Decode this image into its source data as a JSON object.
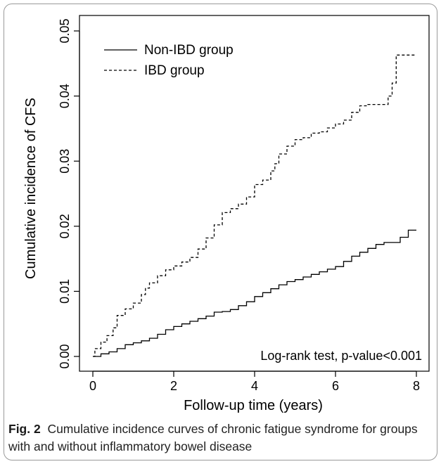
{
  "caption": {
    "label": "Fig. 2",
    "text": "Cumulative incidence curves of chronic fatigue syndrome for groups with and without inflammatory bowel disease"
  },
  "chart_data": {
    "type": "line",
    "step": true,
    "xlabel": "Follow-up time (years)",
    "ylabel": "Cumulative incidence of CFS",
    "xlim": [
      0,
      8
    ],
    "ylim": [
      0,
      0.05
    ],
    "xticks": [
      "0",
      "2",
      "4",
      "6",
      "8"
    ],
    "yticks": [
      "0.00",
      "0.01",
      "0.02",
      "0.03",
      "0.04",
      "0.05"
    ],
    "grid": false,
    "legend_position": "top-left",
    "annotation": "Log-rank test, p-value<0.001",
    "series": [
      {
        "name": "Non-IBD group",
        "style": "solid",
        "color": "#000000",
        "x": [
          0,
          0.2,
          0.4,
          0.6,
          0.8,
          1.0,
          1.2,
          1.4,
          1.6,
          1.8,
          2.0,
          2.2,
          2.4,
          2.6,
          2.8,
          3.0,
          3.2,
          3.4,
          3.6,
          3.8,
          4.0,
          4.2,
          4.4,
          4.6,
          4.8,
          5.0,
          5.2,
          5.4,
          5.6,
          5.8,
          6.0,
          6.2,
          6.4,
          6.6,
          6.8,
          7.0,
          7.2,
          7.4,
          7.6,
          7.8,
          8.0
        ],
        "y": [
          0.0,
          0.0004,
          0.0007,
          0.0012,
          0.0018,
          0.0021,
          0.0024,
          0.0028,
          0.0034,
          0.0041,
          0.0046,
          0.005,
          0.0054,
          0.0058,
          0.0062,
          0.0068,
          0.0069,
          0.0072,
          0.0078,
          0.0084,
          0.0092,
          0.0098,
          0.0104,
          0.011,
          0.0115,
          0.0118,
          0.0122,
          0.0126,
          0.013,
          0.0134,
          0.0138,
          0.0146,
          0.0154,
          0.016,
          0.0166,
          0.0172,
          0.0175,
          0.0175,
          0.0183,
          0.0194,
          0.0194
        ]
      },
      {
        "name": "IBD group",
        "style": "dashed",
        "color": "#000000",
        "x": [
          0,
          0.05,
          0.2,
          0.35,
          0.5,
          0.6,
          0.8,
          1.0,
          1.2,
          1.3,
          1.4,
          1.6,
          1.8,
          2.0,
          2.2,
          2.4,
          2.6,
          2.8,
          3.0,
          3.2,
          3.4,
          3.6,
          3.8,
          4.0,
          4.2,
          4.4,
          4.5,
          4.6,
          4.8,
          5.0,
          5.2,
          5.4,
          5.6,
          5.8,
          6.0,
          6.2,
          6.4,
          6.6,
          6.8,
          7.0,
          7.2,
          7.3,
          7.4,
          7.5,
          7.6,
          7.8,
          8.0
        ],
        "y": [
          0.0,
          0.0012,
          0.0022,
          0.0032,
          0.0044,
          0.0063,
          0.0073,
          0.0082,
          0.0095,
          0.0105,
          0.0113,
          0.0124,
          0.0133,
          0.0139,
          0.0145,
          0.0152,
          0.0165,
          0.0182,
          0.0202,
          0.0221,
          0.0227,
          0.0234,
          0.0245,
          0.0264,
          0.0271,
          0.0285,
          0.0296,
          0.0311,
          0.0323,
          0.0333,
          0.0336,
          0.0343,
          0.0345,
          0.0351,
          0.0357,
          0.0363,
          0.0375,
          0.0385,
          0.0387,
          0.0387,
          0.0387,
          0.04,
          0.042,
          0.0463,
          0.0463,
          0.0463,
          0.0463
        ]
      }
    ]
  }
}
